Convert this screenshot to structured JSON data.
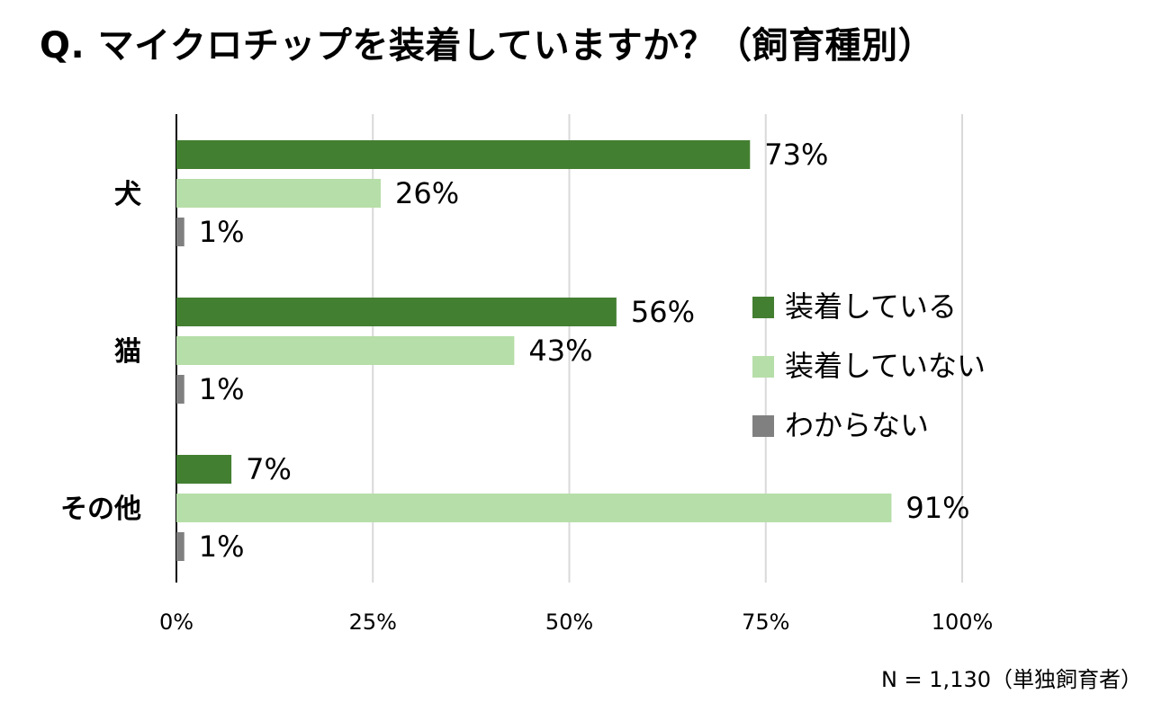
{
  "chart_data": {
    "type": "bar",
    "orientation": "horizontal",
    "title": "Q. マイクロチップを装着していますか？（飼育種別）",
    "categories": [
      "犬",
      "猫",
      "その他"
    ],
    "series": [
      {
        "name": "装着している",
        "values": [
          73,
          56,
          7
        ],
        "color": "#437f31"
      },
      {
        "name": "装着していない",
        "values": [
          26,
          43,
          91
        ],
        "color": "#b6dea8"
      },
      {
        "name": "わからない",
        "values": [
          1,
          1,
          1
        ],
        "color": "#808080"
      }
    ],
    "data_labels": [
      [
        "73%",
        "56%",
        "7%"
      ],
      [
        "26%",
        "43%",
        "91%"
      ],
      [
        "1%",
        "1%",
        "1%"
      ]
    ],
    "xlim": [
      0,
      100
    ],
    "xticks": [
      "0%",
      "25%",
      "50%",
      "75%",
      "100%"
    ],
    "grid": "vertical",
    "legend": "right",
    "footnote": "N = 1,130（単独飼育者）"
  }
}
